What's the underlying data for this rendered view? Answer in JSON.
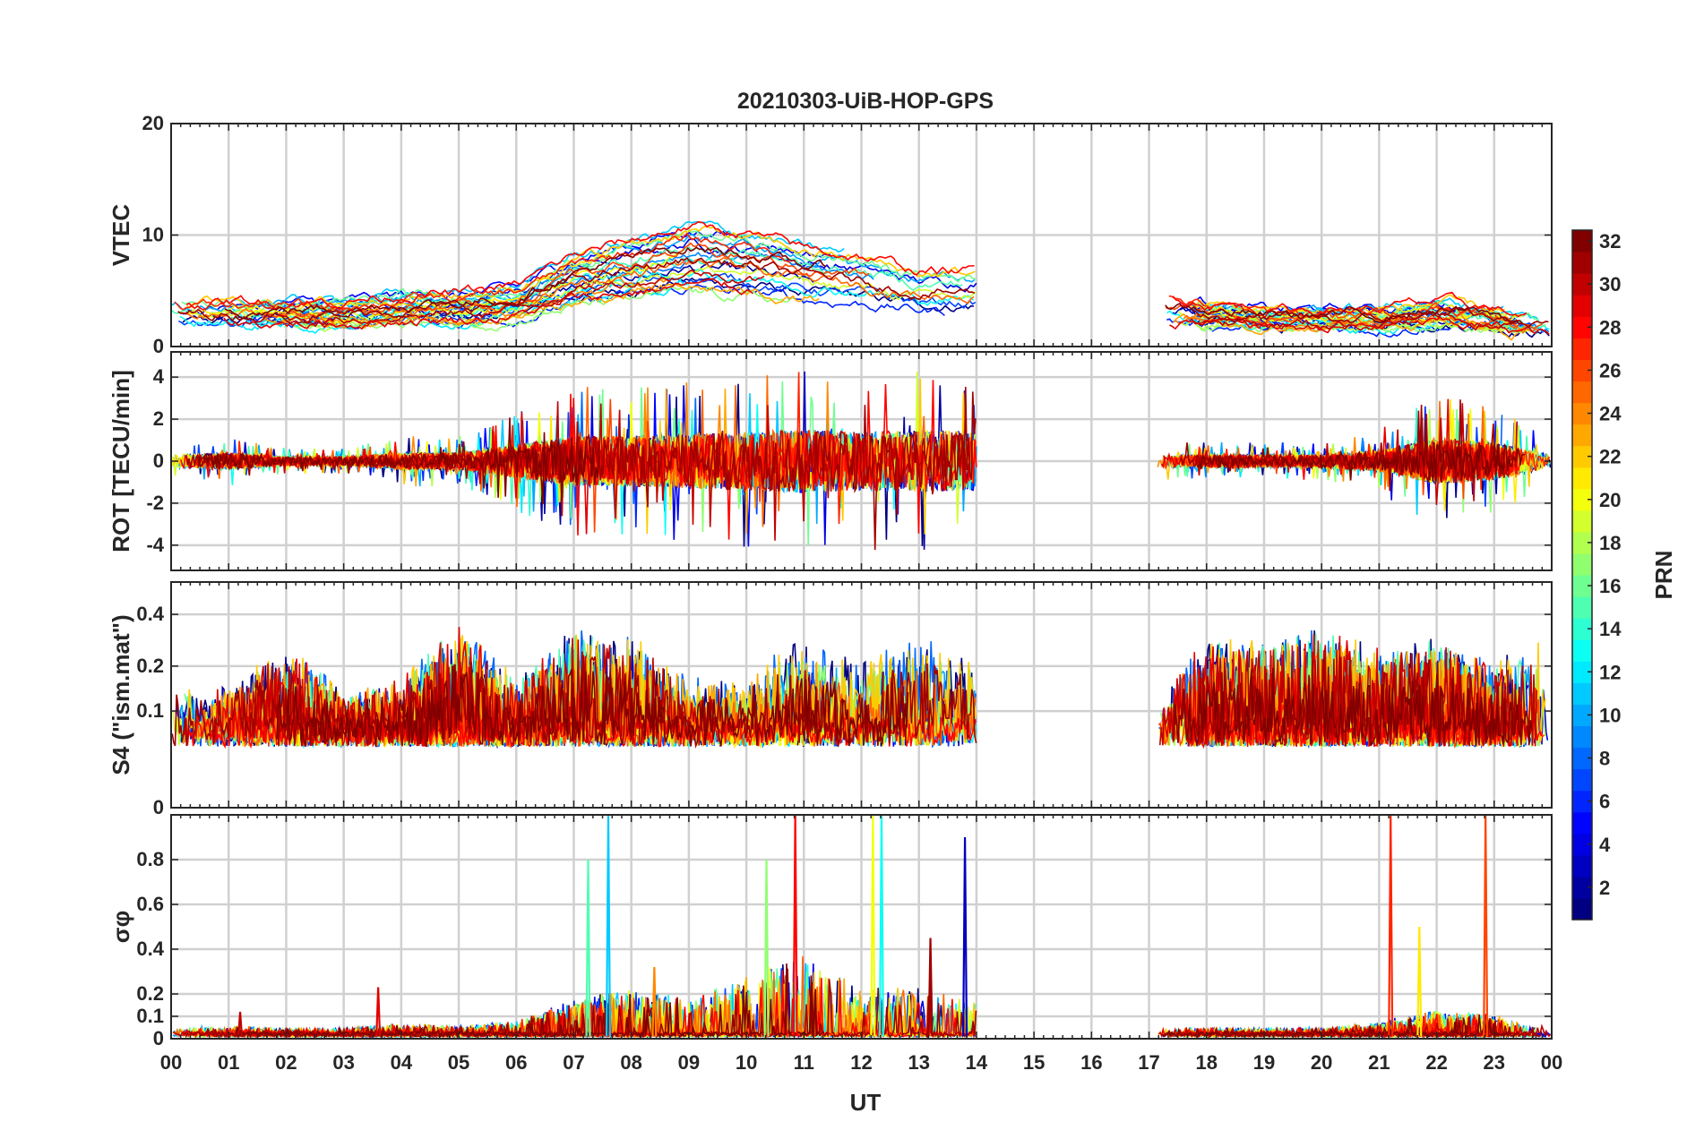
{
  "chart_data": {
    "type": "line",
    "title": "20210303-UiB-HOP-GPS",
    "xlabel": "UT",
    "x_tick_labels": [
      "00",
      "01",
      "02",
      "03",
      "04",
      "05",
      "06",
      "07",
      "08",
      "09",
      "10",
      "11",
      "12",
      "13",
      "14",
      "15",
      "16",
      "17",
      "18",
      "19",
      "20",
      "21",
      "22",
      "23",
      "00"
    ],
    "x_range_hours": [
      0,
      24
    ],
    "data_gaps_hours": [
      [
        14.0,
        17.15
      ]
    ],
    "grid": true,
    "colorbar": {
      "label": "PRN",
      "range": [
        1,
        32
      ],
      "tick_labels": [
        "2",
        "4",
        "6",
        "8",
        "10",
        "12",
        "14",
        "16",
        "18",
        "20",
        "22",
        "24",
        "26",
        "28",
        "30",
        "32"
      ],
      "colormap": "jet"
    },
    "panels": [
      {
        "id": "vtec",
        "ylabel": "VTEC",
        "ylim": [
          0,
          20
        ],
        "ytick_labels": [
          "0",
          "10",
          "20"
        ],
        "ytick_values": [
          0,
          10,
          20
        ],
        "envelope": {
          "x": [
            0,
            1,
            2,
            3,
            4,
            5,
            6,
            7,
            8,
            9,
            10,
            11,
            12,
            13,
            14,
            17.2,
            18,
            19,
            20,
            21,
            22,
            23,
            24
          ],
          "y": [
            3,
            3,
            3,
            3,
            3.5,
            3.5,
            4,
            6,
            7,
            8,
            7.5,
            6.5,
            6,
            5,
            5,
            3.5,
            3,
            2.5,
            2.5,
            2.5,
            3,
            2.5,
            1.5
          ]
        }
      },
      {
        "id": "rot",
        "ylabel": "ROT [TECU/min]",
        "ylim": [
          -5.2,
          5.2
        ],
        "ytick_labels": [
          "-4",
          "-2",
          "0",
          "2",
          "4"
        ],
        "ytick_values": [
          -4,
          -2,
          0,
          2,
          4
        ],
        "activity": {
          "x": [
            0,
            1,
            2,
            3,
            4,
            5,
            6,
            7,
            8,
            9,
            10,
            11,
            12,
            13,
            14,
            17.2,
            18,
            19,
            20,
            21,
            22,
            23,
            24
          ],
          "y": [
            0.3,
            0.4,
            0.2,
            0.2,
            0.4,
            0.4,
            0.8,
            1.2,
            1.2,
            1.3,
            1.4,
            1.5,
            1.4,
            1.5,
            1.4,
            0.3,
            0.3,
            0.3,
            0.3,
            0.5,
            1.1,
            0.9,
            0.3
          ]
        }
      },
      {
        "id": "s4",
        "ylabel": "S4 (\"ism.mat\")",
        "ylim": [
          0,
          0.6
        ],
        "ytick_labels": [
          "0",
          "0.1",
          "0.2",
          "0.4"
        ],
        "ytick_values": [
          0,
          0.1,
          0.2,
          0.4
        ],
        "activity": {
          "x": [
            0,
            1,
            2,
            3,
            4,
            5,
            6,
            7,
            8,
            9,
            10,
            11,
            12,
            13,
            14,
            17.2,
            18,
            19,
            20,
            21,
            22,
            23,
            24
          ],
          "y": [
            0.12,
            0.15,
            0.25,
            0.12,
            0.15,
            0.35,
            0.15,
            0.35,
            0.3,
            0.15,
            0.15,
            0.3,
            0.2,
            0.3,
            0.2,
            0.12,
            0.28,
            0.3,
            0.35,
            0.25,
            0.3,
            0.2,
            0.3
          ]
        }
      },
      {
        "id": "sigma_phi",
        "ylabel": "σφ",
        "ylim": [
          0,
          1
        ],
        "ytick_labels": [
          "0",
          "0.1",
          "0.2",
          "0.4",
          "0.6",
          "0.8"
        ],
        "ytick_values": [
          0,
          0.1,
          0.2,
          0.4,
          0.6,
          0.8
        ],
        "activity": {
          "x": [
            0,
            1,
            2,
            3,
            4,
            5,
            6,
            7,
            8,
            9,
            10,
            11,
            12,
            13,
            14,
            17.2,
            18,
            19,
            20,
            21,
            22,
            23,
            24
          ],
          "y": [
            0.02,
            0.03,
            0.02,
            0.02,
            0.04,
            0.03,
            0.05,
            0.15,
            0.2,
            0.15,
            0.25,
            0.35,
            0.2,
            0.2,
            0.15,
            0.02,
            0.02,
            0.02,
            0.02,
            0.05,
            0.1,
            0.08,
            0.02
          ]
        },
        "spikes": [
          {
            "x": 1.2,
            "y": 0.12,
            "prn": 30
          },
          {
            "x": 3.6,
            "y": 0.23,
            "prn": 29
          },
          {
            "x": 7.25,
            "y": 0.8,
            "prn": 15
          },
          {
            "x": 7.6,
            "y": 1.0,
            "prn": 11
          },
          {
            "x": 8.4,
            "y": 0.32,
            "prn": 24
          },
          {
            "x": 10.35,
            "y": 0.8,
            "prn": 17
          },
          {
            "x": 10.85,
            "y": 1.0,
            "prn": 28
          },
          {
            "x": 12.2,
            "y": 1.0,
            "prn": 20
          },
          {
            "x": 12.35,
            "y": 1.0,
            "prn": 13
          },
          {
            "x": 13.2,
            "y": 0.45,
            "prn": 31
          },
          {
            "x": 13.8,
            "y": 0.9,
            "prn": 3
          },
          {
            "x": 21.2,
            "y": 1.0,
            "prn": 27
          },
          {
            "x": 21.7,
            "y": 0.5,
            "prn": 21
          },
          {
            "x": 22.85,
            "y": 1.0,
            "prn": 26
          }
        ]
      }
    ]
  }
}
